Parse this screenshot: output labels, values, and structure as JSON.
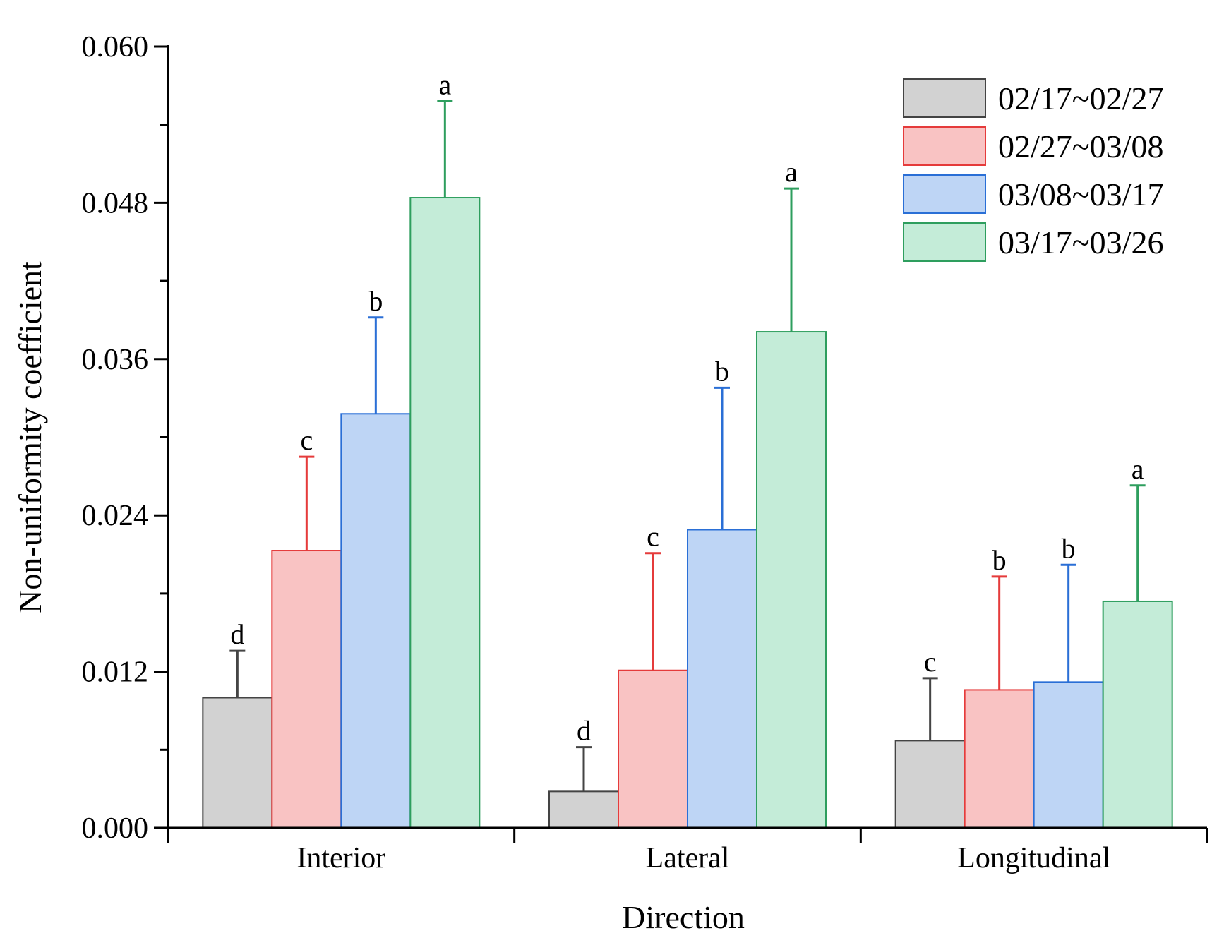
{
  "chart_data": {
    "type": "bar",
    "title": "",
    "xlabel": "Direction",
    "ylabel": "Non-uniformity coefficient",
    "ylim": [
      0,
      0.06
    ],
    "yticks": [
      "0.000",
      "0.012",
      "0.024",
      "0.036",
      "0.048",
      "0.060"
    ],
    "ytick_values": [
      0,
      0.012,
      0.024,
      0.036,
      0.048,
      0.06
    ],
    "categories": [
      "Interior",
      "Lateral",
      "Longitudinal"
    ],
    "legend_position": "top-right",
    "grid": false,
    "series": [
      {
        "name": "02/17~02/27",
        "fill": "#d2d2d2",
        "edge": "#444444",
        "values": [
          0.01,
          0.0028,
          0.0067
        ],
        "errors": [
          0.0036,
          0.0034,
          0.0048
        ],
        "letters": [
          "d",
          "d",
          "c"
        ]
      },
      {
        "name": "02/27~03/08",
        "fill": "#f9c3c3",
        "edge": "#e53b3b",
        "values": [
          0.0213,
          0.0121,
          0.0106
        ],
        "errors": [
          0.0072,
          0.009,
          0.0087
        ],
        "letters": [
          "c",
          "c",
          "b"
        ]
      },
      {
        "name": "03/08~03/17",
        "fill": "#bed5f5",
        "edge": "#2a6fd6",
        "values": [
          0.0318,
          0.0229,
          0.0112
        ],
        "errors": [
          0.0074,
          0.0109,
          0.009
        ],
        "letters": [
          "b",
          "b",
          "b"
        ]
      },
      {
        "name": "03/17~03/26",
        "fill": "#c4ecd8",
        "edge": "#2e9e5e",
        "values": [
          0.0484,
          0.0381,
          0.0174
        ],
        "errors": [
          0.0074,
          0.011,
          0.0089
        ],
        "letters": [
          "a",
          "a",
          "a"
        ]
      }
    ]
  }
}
